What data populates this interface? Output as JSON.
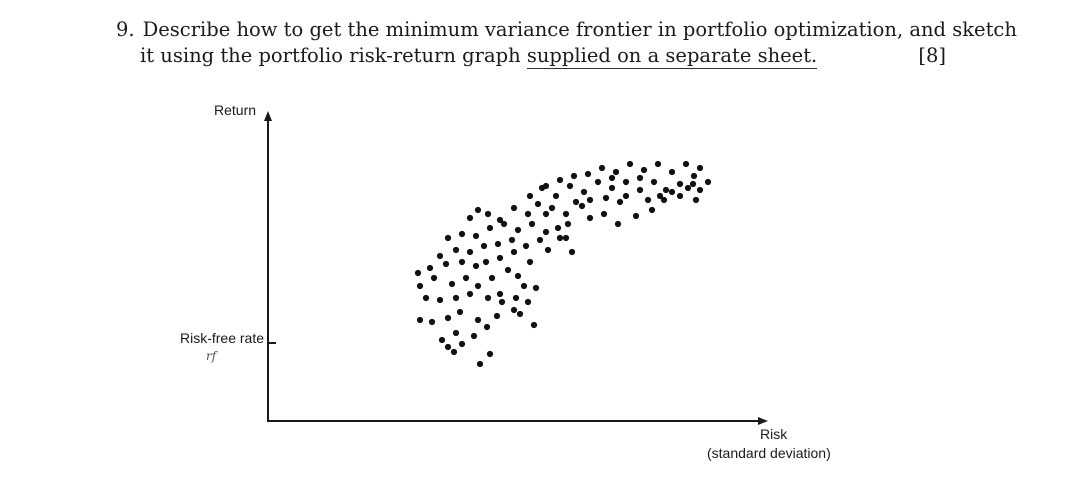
{
  "question": {
    "number": "9.",
    "line1": "Describe how to get the minimum variance frontier in portfolio optimization, and sketch",
    "line2_prefix": "it using the portfolio risk-return graph ",
    "line2_underlined": "supplied on a separate sheet.",
    "marks": "[8]"
  },
  "graph": {
    "y_axis_label": "Return",
    "risk_free_label": "Risk-free rate",
    "risk_free_symbol": "rf",
    "x_axis_label": "Risk",
    "x_axis_sublabel": "(standard deviation)"
  },
  "colors": {
    "ink": "#1a1a1a",
    "dots": "#111111"
  }
}
